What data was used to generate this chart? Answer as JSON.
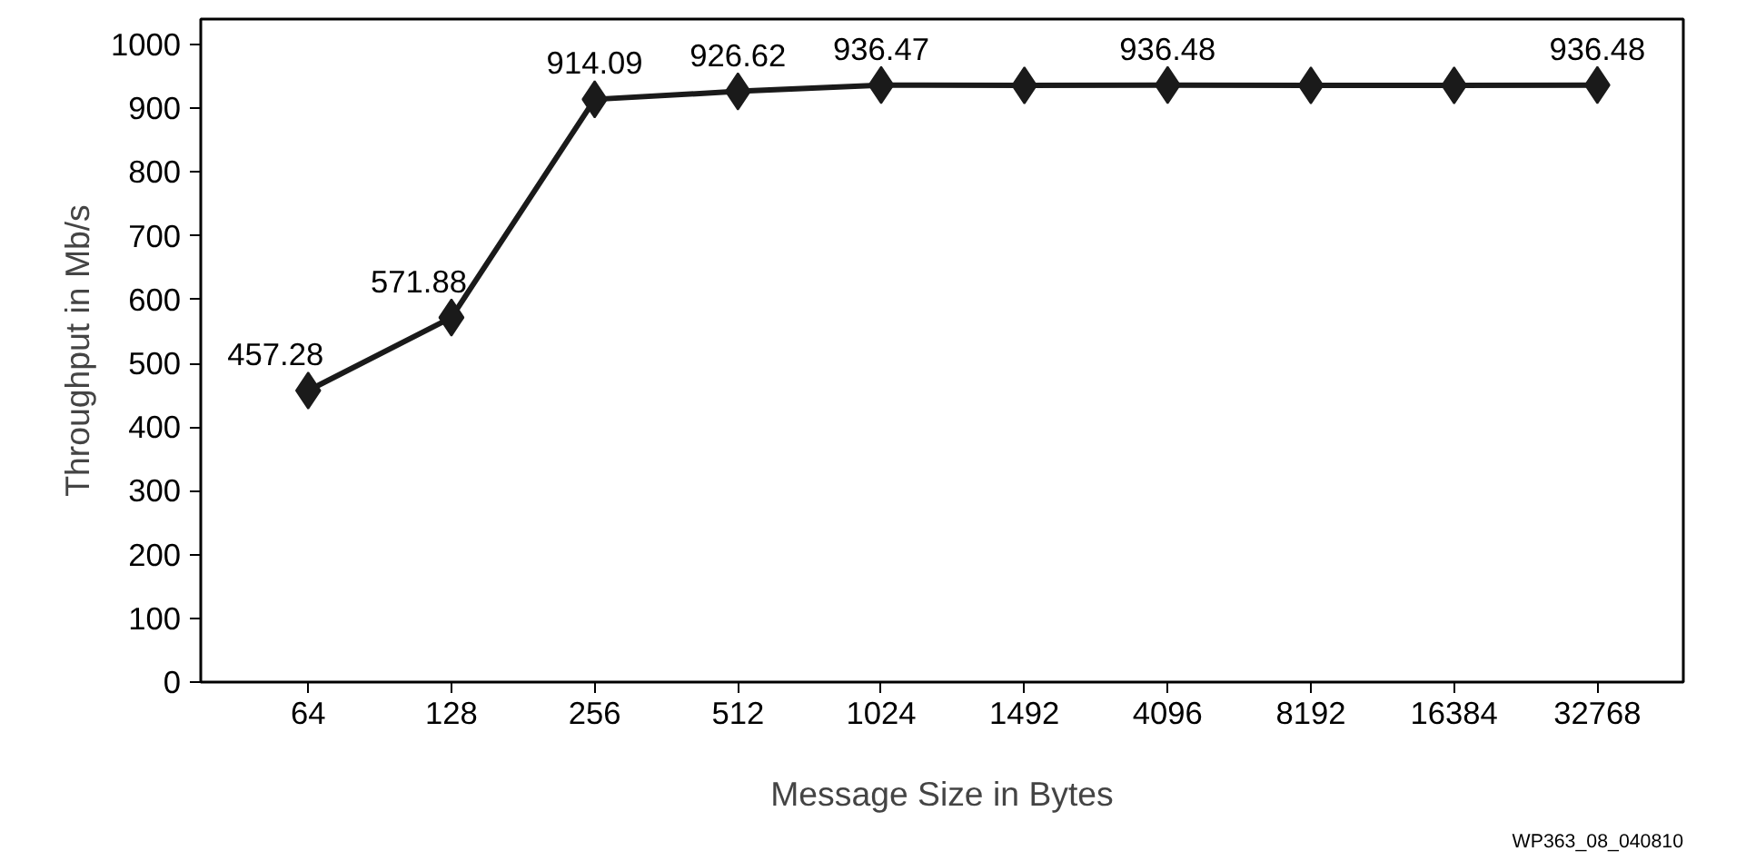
{
  "chart_data": {
    "type": "line",
    "xlabel": "Message Size in Bytes",
    "ylabel": "Throughput in Mb/s",
    "categories": [
      "64",
      "128",
      "256",
      "512",
      "1024",
      "1492",
      "4096",
      "8192",
      "16384",
      "32768"
    ],
    "series": [
      {
        "color": "#1a1a1a",
        "values": [
          457.28,
          571.88,
          914.09,
          926.62,
          936.47,
          936,
          936.48,
          936,
          936,
          936.48
        ],
        "value_labels": [
          "457.28",
          "571.88",
          "914.09",
          "926.62",
          "936.47",
          null,
          "936.48",
          null,
          null,
          "936.48"
        ]
      }
    ],
    "ylim": [
      0,
      1040
    ],
    "yticks": [
      0,
      100,
      200,
      300,
      400,
      500,
      600,
      700,
      800,
      900,
      1000
    ],
    "grid": false,
    "marker": "diamond",
    "line_style": "solid",
    "annotations": [
      "WP363_08_040810"
    ]
  }
}
